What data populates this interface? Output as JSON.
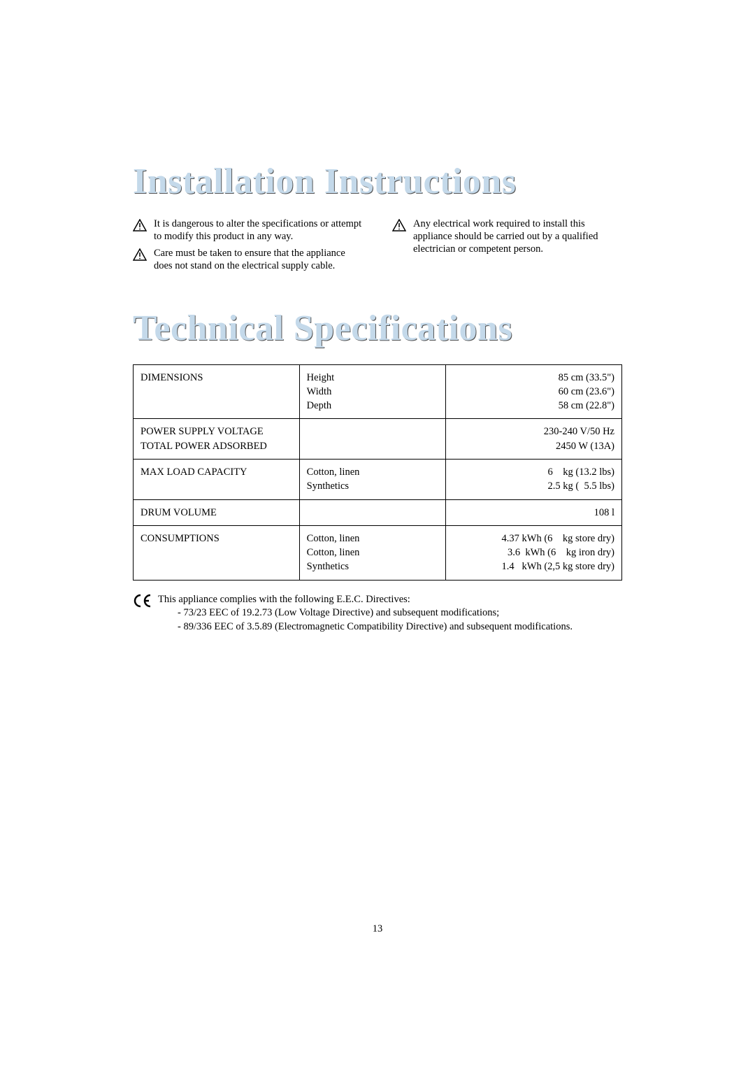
{
  "heading1": "Installation Instructions",
  "heading2": "Technical Specifications",
  "warnings": {
    "left": [
      "It is dangerous to alter the specifications or attempt to modify this product in any way.",
      "Care must be taken to ensure that the appliance does not stand on the electrical supply cable."
    ],
    "right": [
      "Any electrical work required to install this appliance should be carried out by a qualified electrician or competent person."
    ]
  },
  "specs": {
    "rows": [
      {
        "label": "DIMENSIONS",
        "mid": "Height\nWidth\nDepth",
        "val": "85 cm (33.5\")\n60 cm (23.6\")\n58 cm (22.8\")"
      },
      {
        "label": "POWER SUPPLY VOLTAGE\nTOTAL POWER ADSORBED",
        "mid": "",
        "val": "230-240 V/50 Hz\n2450 W (13A)"
      },
      {
        "label": "MAX LOAD CAPACITY",
        "mid": "Cotton, linen\nSynthetics",
        "val": "6    kg (13.2 lbs)\n2.5 kg (  5.5 lbs)"
      },
      {
        "label": "DRUM VOLUME",
        "mid": "",
        "val": "108 l"
      },
      {
        "label": "CONSUMPTIONS",
        "mid": "Cotton, linen\nCotton, linen\nSynthetics",
        "val": "4.37 kWh (6    kg store dry)\n3.6  kWh (6    kg iron dry)\n1.4   kWh (2,5 kg store dry)"
      }
    ]
  },
  "compliance": {
    "ce": "CE",
    "line1": "This appliance complies with the following E.E.C. Directives:",
    "line2": "- 73/23 EEC of 19.2.73 (Low Voltage Directive) and subsequent modifications;",
    "line3": "- 89/336 EEC of 3.5.89 (Electromagnetic Compatibility Directive) and subsequent modifications."
  },
  "pageNumber": "13",
  "style": {
    "title_color": "#c4d9ea",
    "title_fontsize": 52,
    "body_fontsize": 14.5,
    "background": "#ffffff",
    "border_color": "#000000",
    "page_num_top": 1320
  }
}
